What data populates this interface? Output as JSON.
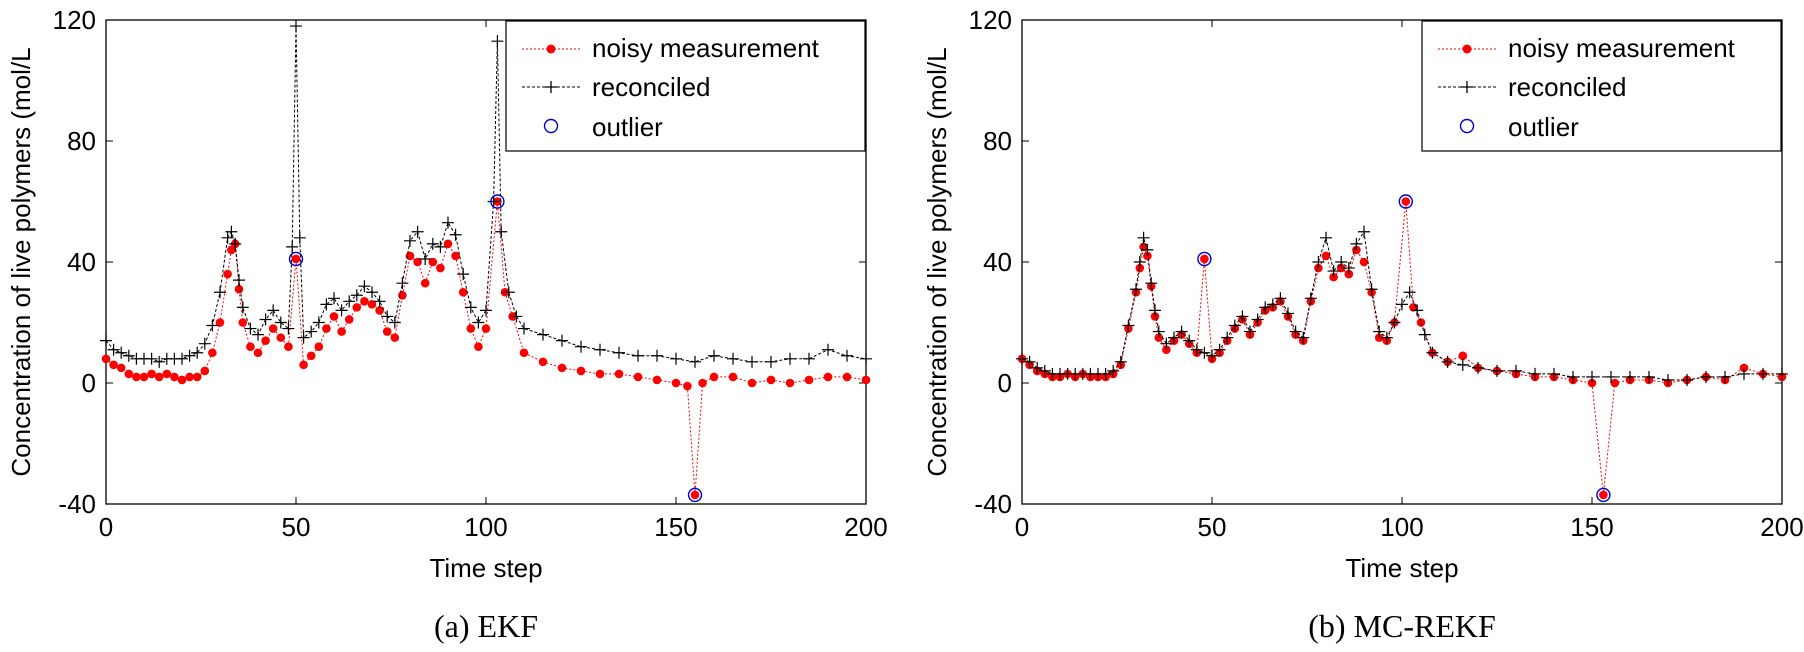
{
  "chart_data": [
    {
      "type": "line",
      "caption": "(a) EKF",
      "xlabel": "Time step",
      "ylabel": "Concentration of live polymers (mol/L",
      "xlim": [
        0,
        200
      ],
      "ylim": [
        -40,
        120
      ],
      "xticks": [
        0,
        50,
        100,
        150,
        200
      ],
      "yticks": [
        -40,
        0,
        40,
        80,
        120
      ],
      "legend": {
        "position": "top-right",
        "entries": [
          "noisy measurement",
          "reconciled",
          "outlier"
        ]
      },
      "series": [
        {
          "name": "noisy measurement",
          "color": "#ff0000",
          "marker": "filled-circle",
          "line": "dotted",
          "x": [
            0,
            2,
            4,
            6,
            8,
            10,
            12,
            14,
            16,
            18,
            20,
            22,
            24,
            26,
            28,
            30,
            32,
            33,
            34,
            35,
            36,
            38,
            40,
            42,
            44,
            46,
            48,
            50,
            52,
            54,
            56,
            58,
            60,
            62,
            64,
            66,
            68,
            70,
            72,
            74,
            76,
            78,
            80,
            82,
            84,
            86,
            88,
            90,
            92,
            94,
            96,
            98,
            100,
            103,
            105,
            107,
            110,
            115,
            120,
            125,
            130,
            135,
            140,
            145,
            150,
            153,
            155,
            157,
            160,
            165,
            170,
            175,
            180,
            185,
            190,
            195,
            200
          ],
          "y": [
            8,
            6,
            5,
            3,
            2,
            2,
            3,
            2,
            3,
            2,
            1,
            2,
            2,
            4,
            10,
            20,
            36,
            44,
            46,
            31,
            20,
            12,
            10,
            14,
            18,
            15,
            12,
            41,
            6,
            9,
            12,
            18,
            22,
            17,
            21,
            25,
            27,
            26,
            24,
            17,
            15,
            29,
            42,
            40,
            33,
            40,
            38,
            46,
            42,
            30,
            18,
            12,
            18,
            60,
            30,
            22,
            10,
            7,
            5,
            4,
            3,
            3,
            2,
            1,
            0,
            -1,
            -37,
            0,
            2,
            2,
            0,
            1,
            0,
            1,
            2,
            2,
            1
          ]
        },
        {
          "name": "reconciled",
          "color": "#000000",
          "marker": "plus",
          "line": "dashed",
          "x": [
            0,
            2,
            4,
            6,
            8,
            10,
            12,
            14,
            16,
            18,
            20,
            22,
            24,
            26,
            28,
            30,
            32,
            33,
            34,
            35,
            36,
            38,
            40,
            42,
            44,
            46,
            48,
            49,
            50,
            51,
            52,
            54,
            56,
            58,
            60,
            62,
            64,
            66,
            68,
            70,
            72,
            74,
            76,
            78,
            80,
            82,
            84,
            86,
            88,
            90,
            92,
            94,
            96,
            98,
            100,
            102,
            103,
            104,
            106,
            108,
            110,
            115,
            120,
            125,
            130,
            135,
            140,
            145,
            150,
            155,
            160,
            165,
            170,
            175,
            180,
            185,
            190,
            195,
            200
          ],
          "y": [
            14,
            11,
            10,
            9,
            8,
            8,
            8,
            7,
            8,
            8,
            8,
            9,
            10,
            13,
            19,
            30,
            48,
            50,
            46,
            34,
            25,
            18,
            16,
            21,
            24,
            20,
            18,
            45,
            118,
            48,
            15,
            17,
            20,
            26,
            28,
            24,
            27,
            29,
            32,
            30,
            27,
            22,
            20,
            33,
            47,
            50,
            41,
            46,
            45,
            53,
            49,
            36,
            25,
            20,
            24,
            60,
            113,
            50,
            30,
            22,
            18,
            16,
            14,
            12,
            11,
            10,
            9,
            9,
            8,
            7,
            9,
            8,
            7,
            7,
            8,
            8,
            11,
            9,
            8
          ]
        },
        {
          "name": "outlier",
          "color": "#0000cc",
          "marker": "open-circle",
          "line": "none",
          "x": [
            50,
            103,
            155
          ],
          "y": [
            41,
            60,
            -37
          ]
        }
      ]
    },
    {
      "type": "line",
      "caption": "(b) MC-REKF",
      "xlabel": "Time step",
      "ylabel": "Concentration of live polymers (mol/L",
      "xlim": [
        0,
        200
      ],
      "ylim": [
        -40,
        120
      ],
      "xticks": [
        0,
        50,
        100,
        150,
        200
      ],
      "yticks": [
        -40,
        0,
        40,
        80,
        120
      ],
      "legend": {
        "position": "top-right",
        "entries": [
          "noisy measurement",
          "reconciled",
          "outlier"
        ]
      },
      "series": [
        {
          "name": "noisy measurement",
          "color": "#ff0000",
          "marker": "filled-circle",
          "line": "dotted",
          "x": [
            0,
            2,
            4,
            6,
            8,
            10,
            12,
            14,
            16,
            18,
            20,
            22,
            24,
            26,
            28,
            30,
            31,
            32,
            33,
            34,
            35,
            36,
            38,
            40,
            42,
            44,
            46,
            48,
            50,
            52,
            54,
            56,
            58,
            60,
            62,
            64,
            66,
            68,
            70,
            72,
            74,
            76,
            78,
            80,
            82,
            84,
            86,
            88,
            90,
            92,
            94,
            96,
            98,
            101,
            103,
            105,
            108,
            112,
            116,
            120,
            125,
            130,
            135,
            140,
            145,
            150,
            153,
            156,
            160,
            165,
            170,
            175,
            180,
            185,
            190,
            195,
            200
          ],
          "y": [
            8,
            6,
            4,
            3,
            2,
            2,
            3,
            2,
            3,
            2,
            2,
            2,
            3,
            6,
            18,
            30,
            38,
            45,
            42,
            32,
            22,
            15,
            11,
            14,
            16,
            13,
            10,
            41,
            8,
            10,
            14,
            18,
            21,
            16,
            20,
            24,
            25,
            27,
            22,
            16,
            14,
            27,
            38,
            42,
            35,
            38,
            36,
            44,
            40,
            30,
            15,
            14,
            20,
            60,
            25,
            20,
            10,
            7,
            9,
            5,
            4,
            3,
            2,
            2,
            1,
            0,
            -37,
            0,
            1,
            1,
            0,
            1,
            2,
            1,
            5,
            3,
            2
          ]
        },
        {
          "name": "reconciled",
          "color": "#000000",
          "marker": "plus",
          "line": "dashed",
          "x": [
            0,
            2,
            4,
            6,
            8,
            10,
            12,
            14,
            16,
            18,
            20,
            22,
            24,
            26,
            28,
            30,
            31,
            32,
            33,
            34,
            35,
            36,
            38,
            40,
            42,
            44,
            46,
            48,
            50,
            52,
            54,
            56,
            58,
            60,
            62,
            64,
            66,
            68,
            70,
            72,
            74,
            76,
            78,
            80,
            82,
            84,
            86,
            88,
            90,
            92,
            94,
            96,
            98,
            100,
            102,
            104,
            106,
            108,
            112,
            116,
            120,
            125,
            130,
            135,
            140,
            145,
            150,
            155,
            160,
            165,
            170,
            175,
            180,
            185,
            190,
            195,
            200
          ],
          "y": [
            8,
            7,
            5,
            4,
            3,
            3,
            3,
            3,
            3,
            3,
            3,
            3,
            4,
            7,
            19,
            31,
            40,
            48,
            44,
            33,
            24,
            17,
            13,
            15,
            17,
            14,
            11,
            10,
            9,
            11,
            15,
            19,
            22,
            17,
            21,
            25,
            26,
            28,
            23,
            17,
            15,
            28,
            40,
            48,
            37,
            40,
            38,
            46,
            50,
            31,
            17,
            15,
            20,
            26,
            30,
            24,
            16,
            10,
            7,
            6,
            5,
            4,
            4,
            3,
            3,
            2,
            2,
            2,
            2,
            2,
            1,
            1,
            2,
            2,
            3,
            3,
            3
          ]
        },
        {
          "name": "outlier",
          "color": "#0000cc",
          "marker": "open-circle",
          "line": "none",
          "x": [
            48,
            101,
            153
          ],
          "y": [
            41,
            60,
            -37
          ]
        }
      ]
    }
  ]
}
